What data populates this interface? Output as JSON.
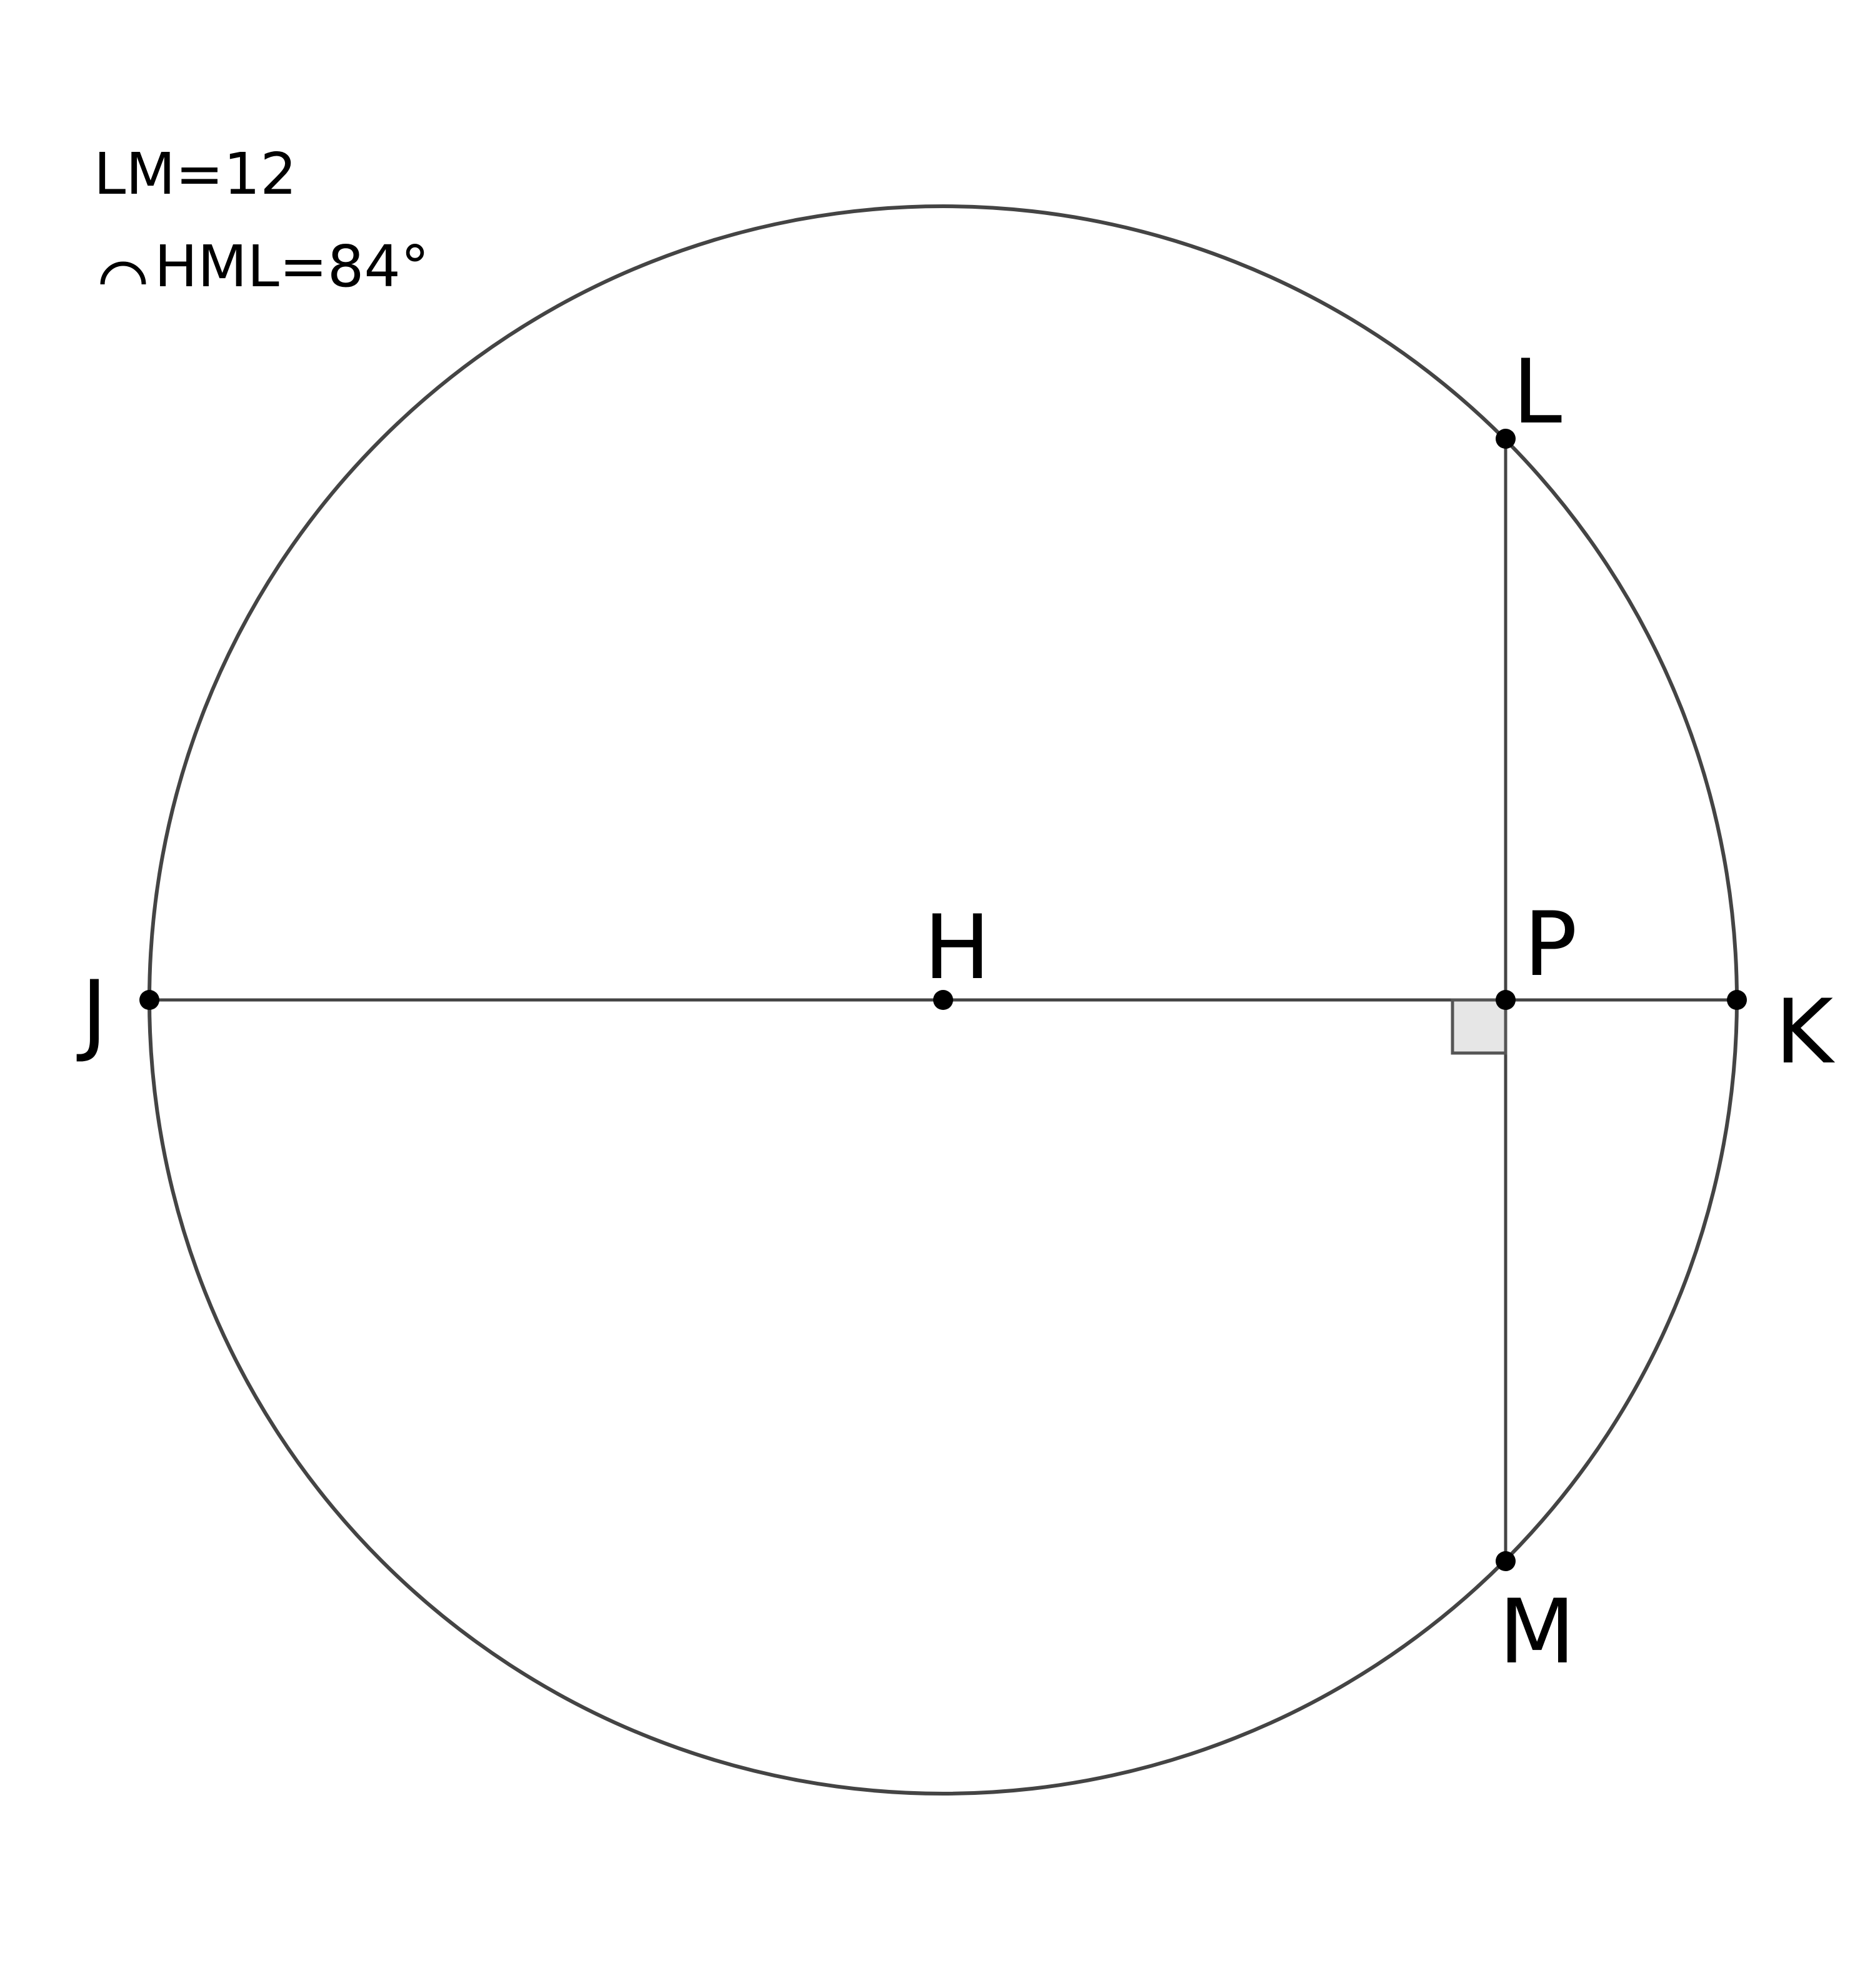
{
  "given": {
    "line1": "LM=12",
    "line2": "HML=84°",
    "arc_symbol_icon": "arc-symbol"
  },
  "points": {
    "J": "J",
    "H": "H",
    "P": "P",
    "K": "K",
    "L": "L",
    "M": "M"
  },
  "colors": {
    "stroke": "#444444",
    "point": "#000000",
    "right_angle_fill": "#e6e6e6"
  }
}
